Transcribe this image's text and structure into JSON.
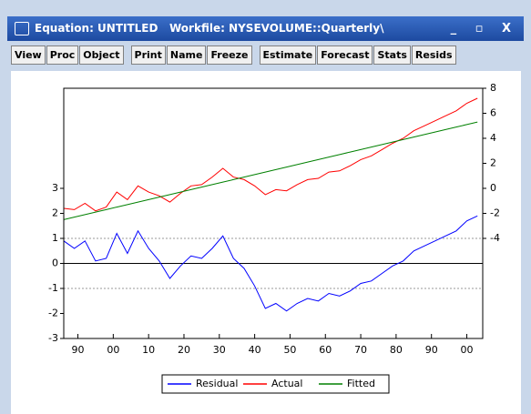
{
  "window": {
    "title": "Equation: UNTITLED   Workfile: NYSEVOLUME::Quarterly\\"
  },
  "toolbar": {
    "buttons": [
      "View",
      "Proc",
      "Object",
      "Print",
      "Name",
      "Freeze",
      "Estimate",
      "Forecast",
      "Stats",
      "Resids"
    ]
  },
  "chart_data": {
    "type": "line",
    "x": [
      1886,
      1889,
      1892,
      1895,
      1898,
      1901,
      1904,
      1907,
      1910,
      1913,
      1916,
      1919,
      1922,
      1925,
      1928,
      1931,
      1934,
      1937,
      1940,
      1943,
      1946,
      1949,
      1952,
      1955,
      1958,
      1961,
      1964,
      1967,
      1970,
      1973,
      1976,
      1979,
      1982,
      1985,
      1988,
      1991,
      1994,
      1997,
      2000,
      2003
    ],
    "series": [
      {
        "name": "Residual",
        "color": "#0000ff",
        "axis": "y",
        "values": [
          0.9,
          0.6,
          0.9,
          0.1,
          0.2,
          1.2,
          0.4,
          1.3,
          0.6,
          0.1,
          -0.6,
          -0.1,
          0.3,
          0.2,
          0.6,
          1.1,
          0.2,
          -0.2,
          -0.9,
          -1.8,
          -1.6,
          -1.9,
          -1.6,
          -1.4,
          -1.5,
          -1.2,
          -1.3,
          -1.1,
          -0.8,
          -0.7,
          -0.4,
          -0.1,
          0.1,
          0.5,
          0.7,
          0.9,
          1.1,
          1.3,
          1.7,
          1.9
        ]
      },
      {
        "name": "Actual",
        "color": "#ff0000",
        "axis": "y2",
        "values": [
          -1.6,
          -1.7,
          -1.2,
          -1.8,
          -1.5,
          -0.3,
          -0.9,
          0.2,
          -0.3,
          -0.6,
          -1.1,
          -0.4,
          0.2,
          0.3,
          0.9,
          1.6,
          0.9,
          0.7,
          0.2,
          -0.5,
          -0.1,
          -0.2,
          0.3,
          0.7,
          0.8,
          1.3,
          1.4,
          1.8,
          2.3,
          2.6,
          3.1,
          3.6,
          4.0,
          4.6,
          5.0,
          5.4,
          5.8,
          6.2,
          6.8,
          7.2
        ]
      },
      {
        "name": "Fitted",
        "color": "#008000",
        "axis": "y2",
        "values": [
          -2.5,
          -2.3,
          -2.1,
          -1.9,
          -1.7,
          -1.5,
          -1.3,
          -1.1,
          -0.9,
          -0.7,
          -0.5,
          -0.3,
          -0.1,
          0.1,
          0.3,
          0.5,
          0.7,
          0.9,
          1.1,
          1.3,
          1.5,
          1.7,
          1.9,
          2.1,
          2.3,
          2.5,
          2.7,
          2.9,
          3.1,
          3.3,
          3.5,
          3.7,
          3.9,
          4.1,
          4.3,
          4.5,
          4.7,
          4.9,
          5.1,
          5.3
        ]
      }
    ],
    "xlim": [
      1886,
      2004.5
    ],
    "xticks": [
      {
        "value": 1890,
        "label": "90"
      },
      {
        "value": 1900,
        "label": "00"
      },
      {
        "value": 1910,
        "label": "10"
      },
      {
        "value": 1920,
        "label": "20"
      },
      {
        "value": 1930,
        "label": "30"
      },
      {
        "value": 1940,
        "label": "40"
      },
      {
        "value": 1950,
        "label": "50"
      },
      {
        "value": 1960,
        "label": "60"
      },
      {
        "value": 1970,
        "label": "70"
      },
      {
        "value": 1980,
        "label": "80"
      },
      {
        "value": 1990,
        "label": "90"
      },
      {
        "value": 2000,
        "label": "00"
      }
    ],
    "ylim": [
      -3,
      7
    ],
    "yticks": [
      -3,
      -2,
      -1,
      0,
      1,
      2,
      3
    ],
    "y2lim": [
      -12,
      8
    ],
    "y2ticks": [
      -4,
      -2,
      0,
      2,
      4,
      6,
      8
    ],
    "bands": [
      -1,
      1
    ],
    "legend": "bottom"
  }
}
